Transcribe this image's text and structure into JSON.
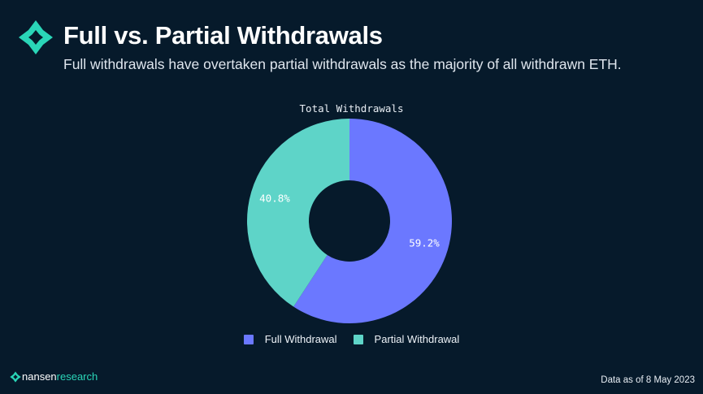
{
  "header": {
    "title": "Full vs. Partial Withdrawals",
    "subtitle": "Full withdrawals have overtaken partial withdrawals as the majority of all withdrawn ETH."
  },
  "chart_data": {
    "type": "pie",
    "variant": "donut",
    "title": "Total Withdrawals",
    "slices": [
      {
        "name": "Full Withdrawal",
        "value": 59.2,
        "label": "59.2%",
        "color": "#6b78ff"
      },
      {
        "name": "Partial Withdrawal",
        "value": 40.8,
        "label": "40.8%",
        "color": "#5ed4c8"
      }
    ],
    "legend_position": "bottom"
  },
  "footer": {
    "brand_name": "nansen",
    "brand_suffix": "research",
    "note": "Data as of 8 May 2023"
  },
  "colors": {
    "background": "#061a2b",
    "brand_accent": "#2ad6b8"
  },
  "icons": {
    "header_logo": "nansen-logo-icon",
    "footer_logo": "nansen-small-logo-icon"
  }
}
